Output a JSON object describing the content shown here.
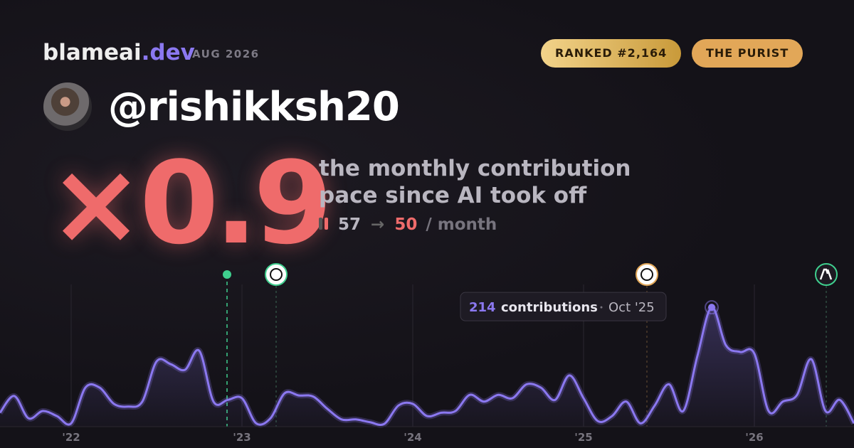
{
  "header": {
    "brand": "blameai",
    "brand_suffix": ".dev",
    "date": "AUG 2026",
    "badges": [
      "RANKED #2,164",
      "THE PURIST"
    ]
  },
  "profile": {
    "handle": "@rishikksh20"
  },
  "headline": {
    "multiplier": "×0.9",
    "caption_lines": [
      "the monthly contribution",
      "pace since AI took off"
    ],
    "before": "57",
    "arrow": "→",
    "after": "50",
    "unit": "/ month"
  },
  "chart_data": {
    "type": "line",
    "color": "#8b78f0",
    "categories": [
      null,
      null,
      null,
      null,
      null,
      null,
      null,
      null,
      null,
      null,
      null,
      null,
      null,
      null,
      null,
      null,
      null,
      null,
      null,
      null,
      null,
      null,
      null,
      null,
      null,
      null,
      null,
      null,
      null,
      null,
      null,
      null,
      null,
      null,
      null,
      null,
      null,
      null,
      null,
      null,
      null,
      null,
      null,
      null,
      null,
      null,
      null,
      null,
      null,
      null,
      "Oct '25",
      null,
      null,
      null,
      null,
      null,
      null,
      null,
      null,
      null,
      null
    ],
    "values": [
      25,
      55,
      15,
      28,
      19,
      6,
      70,
      70,
      41,
      36,
      45,
      117,
      112,
      102,
      136,
      45,
      48,
      51,
      6,
      15,
      60,
      56,
      54,
      32,
      13,
      13,
      8,
      5,
      38,
      41,
      19,
      25,
      28,
      57,
      45,
      57,
      51,
      76,
      70,
      48,
      92,
      51,
      10,
      19,
      45,
      6,
      38,
      76,
      28,
      127,
      214,
      146,
      134,
      131,
      28,
      45,
      57,
      121,
      28,
      48,
      6
    ],
    "xlim": [
      0,
      60
    ],
    "ylim": [
      0,
      255
    ],
    "xticks": [
      {
        "value": 5,
        "label": "'22"
      },
      {
        "value": 17,
        "label": "'23"
      },
      {
        "value": 29,
        "label": "'24"
      },
      {
        "value": 41,
        "label": "'25"
      },
      {
        "value": 53,
        "label": "'26"
      }
    ],
    "tooltip": {
      "index": 50,
      "unit": "contributions"
    }
  }
}
